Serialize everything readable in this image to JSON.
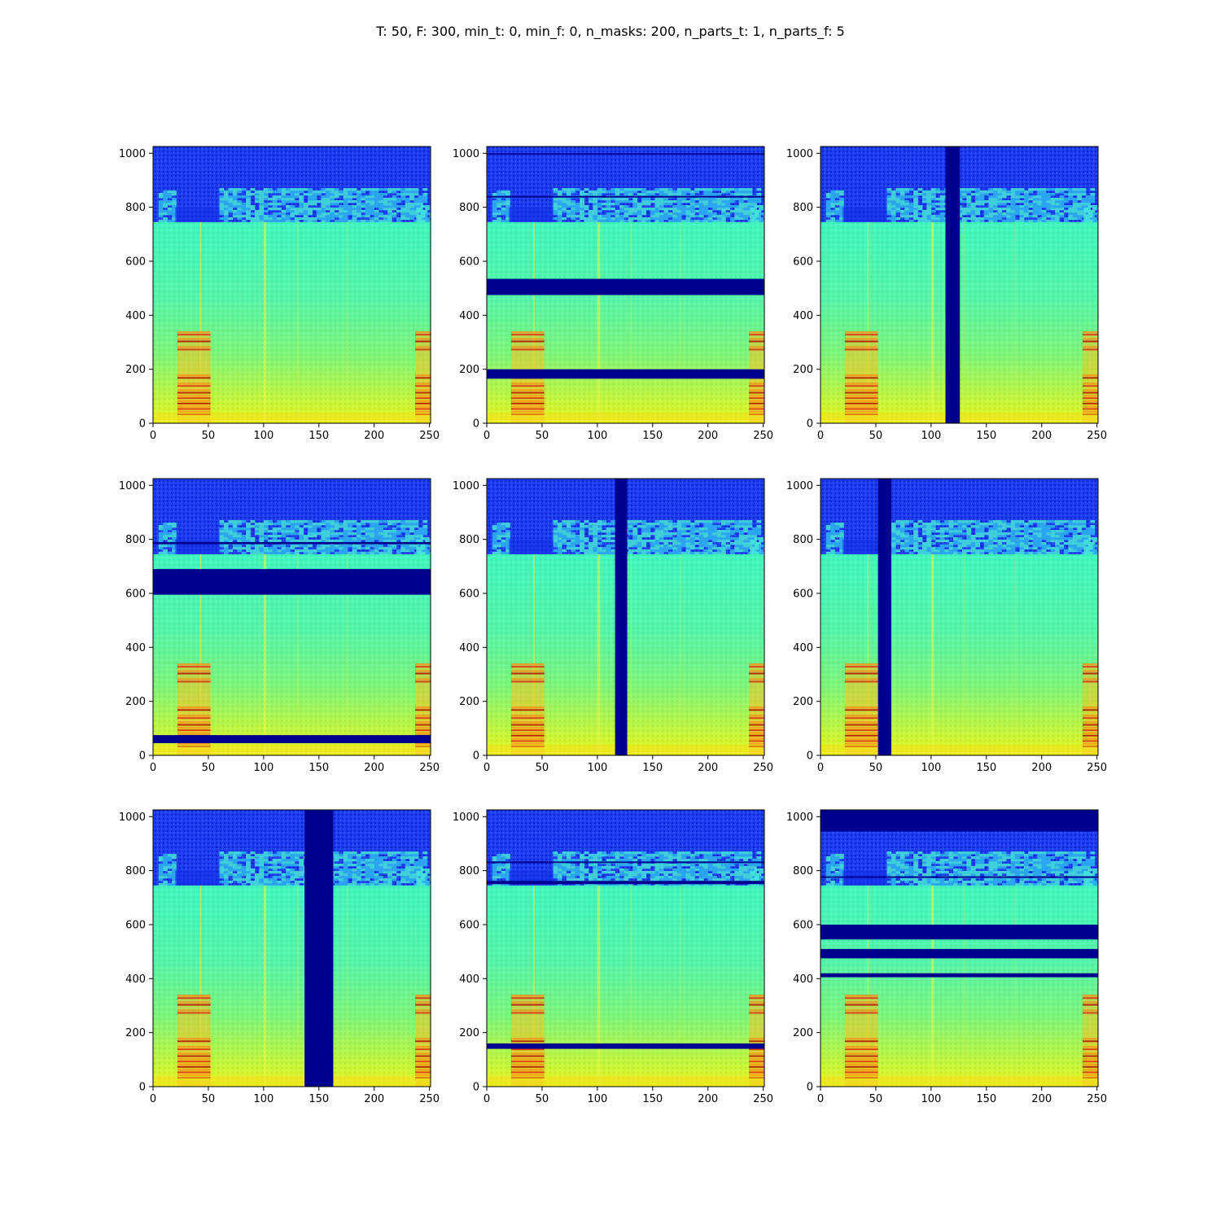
{
  "figure": {
    "suptitle": "T: 50, F: 300, min_t: 0, min_f: 0, n_masks: 200, n_parts_t: 1, n_parts_f: 5"
  },
  "chart_data": [
    {
      "type": "heatmap",
      "description_free": true,
      "xlim": [
        0,
        251
      ],
      "ylim": [
        0,
        1025
      ],
      "x_ticks": [
        0,
        50,
        100,
        150,
        200,
        250
      ],
      "y_ticks": [
        0,
        200,
        400,
        600,
        800,
        1000
      ],
      "colormap": "jet",
      "masks": []
    },
    {
      "type": "heatmap",
      "xlim": [
        0,
        251
      ],
      "ylim": [
        0,
        1025
      ],
      "x_ticks": [
        0,
        50,
        100,
        150,
        200,
        250
      ],
      "y_ticks": [
        0,
        200,
        400,
        600,
        800,
        1000
      ],
      "colormap": "jet",
      "masks": [
        {
          "axis": "f",
          "from": 475,
          "to": 535
        },
        {
          "axis": "f",
          "from": 165,
          "to": 200
        },
        {
          "axis": "f",
          "from": 836,
          "to": 842
        },
        {
          "axis": "f",
          "from": 995,
          "to": 1000
        }
      ]
    },
    {
      "type": "heatmap",
      "xlim": [
        0,
        251
      ],
      "ylim": [
        0,
        1025
      ],
      "x_ticks": [
        0,
        50,
        100,
        150,
        200,
        250
      ],
      "y_ticks": [
        0,
        200,
        400,
        600,
        800,
        1000
      ],
      "colormap": "jet",
      "masks": [
        {
          "axis": "t",
          "from": 113,
          "to": 126
        }
      ]
    },
    {
      "type": "heatmap",
      "xlim": [
        0,
        251
      ],
      "ylim": [
        0,
        1025
      ],
      "x_ticks": [
        0,
        50,
        100,
        150,
        200,
        250
      ],
      "y_ticks": [
        0,
        200,
        400,
        600,
        800,
        1000
      ],
      "colormap": "jet",
      "masks": [
        {
          "axis": "f",
          "from": 595,
          "to": 690
        },
        {
          "axis": "f",
          "from": 45,
          "to": 75
        },
        {
          "axis": "f",
          "from": 782,
          "to": 790
        }
      ]
    },
    {
      "type": "heatmap",
      "xlim": [
        0,
        251
      ],
      "ylim": [
        0,
        1025
      ],
      "x_ticks": [
        0,
        50,
        100,
        150,
        200,
        250
      ],
      "y_ticks": [
        0,
        200,
        400,
        600,
        800,
        1000
      ],
      "colormap": "jet",
      "masks": [
        {
          "axis": "t",
          "from": 116,
          "to": 127
        }
      ]
    },
    {
      "type": "heatmap",
      "xlim": [
        0,
        251
      ],
      "ylim": [
        0,
        1025
      ],
      "x_ticks": [
        0,
        50,
        100,
        150,
        200,
        250
      ],
      "y_ticks": [
        0,
        200,
        400,
        600,
        800,
        1000
      ],
      "colormap": "jet",
      "masks": [
        {
          "axis": "t",
          "from": 52,
          "to": 64
        }
      ]
    },
    {
      "type": "heatmap",
      "xlim": [
        0,
        251
      ],
      "ylim": [
        0,
        1025
      ],
      "x_ticks": [
        0,
        50,
        100,
        150,
        200,
        250
      ],
      "y_ticks": [
        0,
        200,
        400,
        600,
        800,
        1000
      ],
      "colormap": "jet",
      "masks": [
        {
          "axis": "t",
          "from": 137,
          "to": 163
        }
      ]
    },
    {
      "type": "heatmap",
      "xlim": [
        0,
        251
      ],
      "ylim": [
        0,
        1025
      ],
      "x_ticks": [
        0,
        50,
        100,
        150,
        200,
        250
      ],
      "y_ticks": [
        0,
        200,
        400,
        600,
        800,
        1000
      ],
      "colormap": "jet",
      "masks": [
        {
          "axis": "f",
          "from": 140,
          "to": 160
        },
        {
          "axis": "f",
          "from": 750,
          "to": 762
        },
        {
          "axis": "f",
          "from": 828,
          "to": 834
        }
      ]
    },
    {
      "type": "heatmap",
      "xlim": [
        0,
        251
      ],
      "ylim": [
        0,
        1025
      ],
      "x_ticks": [
        0,
        50,
        100,
        150,
        200,
        250
      ],
      "y_ticks": [
        0,
        200,
        400,
        600,
        800,
        1000
      ],
      "colormap": "jet",
      "masks": [
        {
          "axis": "f",
          "from": 945,
          "to": 1025
        },
        {
          "axis": "f",
          "from": 545,
          "to": 600
        },
        {
          "axis": "f",
          "from": 475,
          "to": 510
        },
        {
          "axis": "f",
          "from": 405,
          "to": 420
        },
        {
          "axis": "f",
          "from": 773,
          "to": 779
        }
      ]
    }
  ]
}
